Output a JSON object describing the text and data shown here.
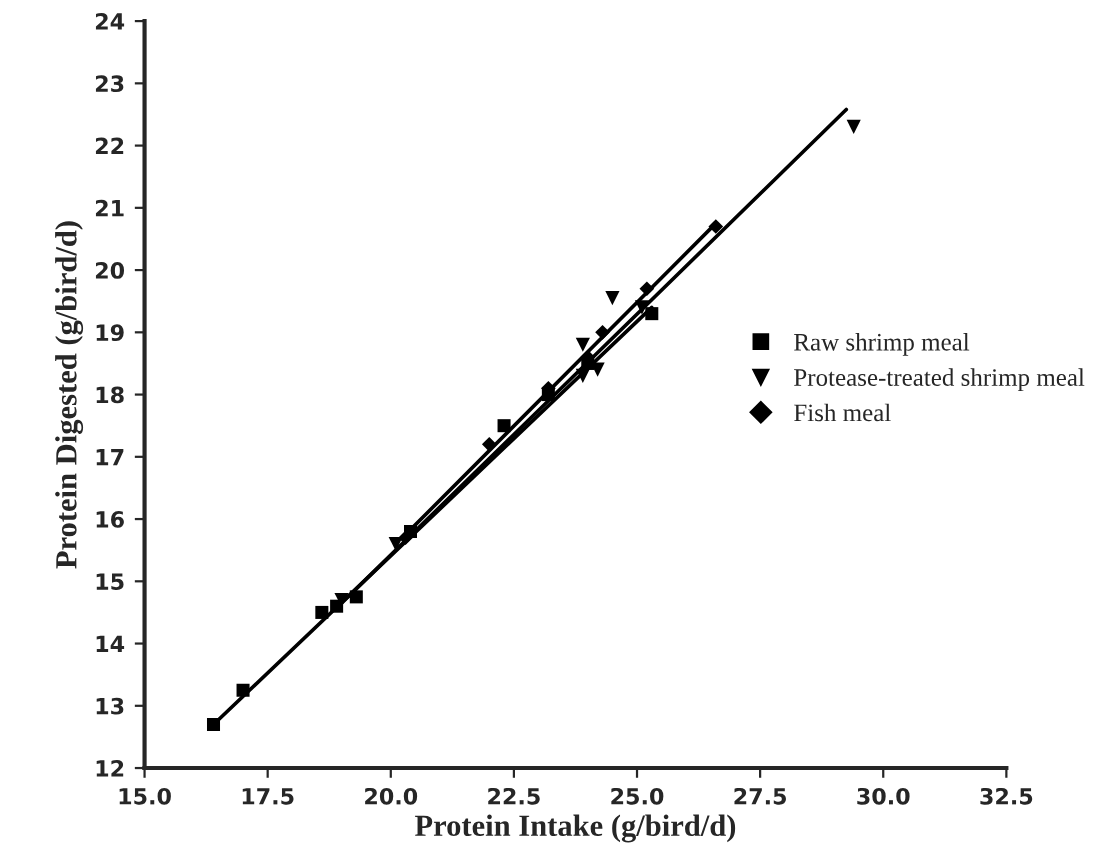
{
  "chart_data": {
    "type": "scatter",
    "xlabel": "Protein Intake (g/bird/d)",
    "ylabel": "Protein Digested (g/bird/d)",
    "xlim": [
      15.0,
      32.5
    ],
    "xticks": [
      {
        "value": 15,
        "label": "15.0"
      },
      {
        "value": 17.5,
        "label": "17.5"
      },
      {
        "value": 20,
        "label": "20.0"
      },
      {
        "value": 22.5,
        "label": "22.5"
      },
      {
        "value": 25,
        "label": "25.0"
      },
      {
        "value": 27.5,
        "label": "27.5"
      },
      {
        "value": 30,
        "label": "30.0"
      },
      {
        "value": 32.5,
        "label": "32.5"
      }
    ],
    "ylim": [
      12,
      24
    ],
    "yticks": [
      12,
      13,
      14,
      15,
      16,
      17,
      18,
      19,
      20,
      21,
      22,
      23,
      24
    ],
    "grid": false,
    "legend": "right",
    "series": [
      {
        "name": "Raw shrimp meal",
        "color": "#000000",
        "marker": "square",
        "x": [
          16.4,
          17.0,
          18.6,
          18.9,
          19.3,
          20.4,
          22.3,
          23.2,
          24.0,
          25.3
        ],
        "values": [
          12.7,
          13.25,
          14.5,
          14.6,
          14.75,
          15.8,
          17.5,
          18.0,
          18.5,
          19.3
        ]
      },
      {
        "name": "Protease-treated shrimp meal",
        "color": "#000000",
        "marker": "triangle",
        "x": [
          19.0,
          20.1,
          22.0,
          23.9,
          23.9,
          24.2,
          24.5,
          25.1,
          29.4
        ],
        "values": [
          14.7,
          15.6,
          null,
          18.3,
          18.8,
          18.4,
          19.55,
          19.4,
          22.3
        ]
      },
      {
        "name": "Fish meal",
        "color": "#000000",
        "marker": "diamond",
        "x": [
          20.3,
          22.0,
          23.2,
          24.0,
          24.3,
          25.2,
          26.6
        ],
        "values": [
          15.7,
          17.2,
          18.1,
          18.6,
          19.0,
          19.7,
          20.7
        ]
      },
      {
        "type": "line",
        "color": "#000000",
        "x": [
          16.4,
          25.3
        ],
        "values": [
          12.7,
          19.4
        ]
      },
      {
        "type": "line",
        "color": "#000000",
        "x": [
          19.0,
          29.25
        ],
        "values": [
          14.65,
          22.58
        ]
      },
      {
        "type": "line",
        "color": "#000000",
        "x": [
          20.3,
          26.6
        ],
        "values": [
          15.75,
          20.75
        ]
      }
    ]
  }
}
